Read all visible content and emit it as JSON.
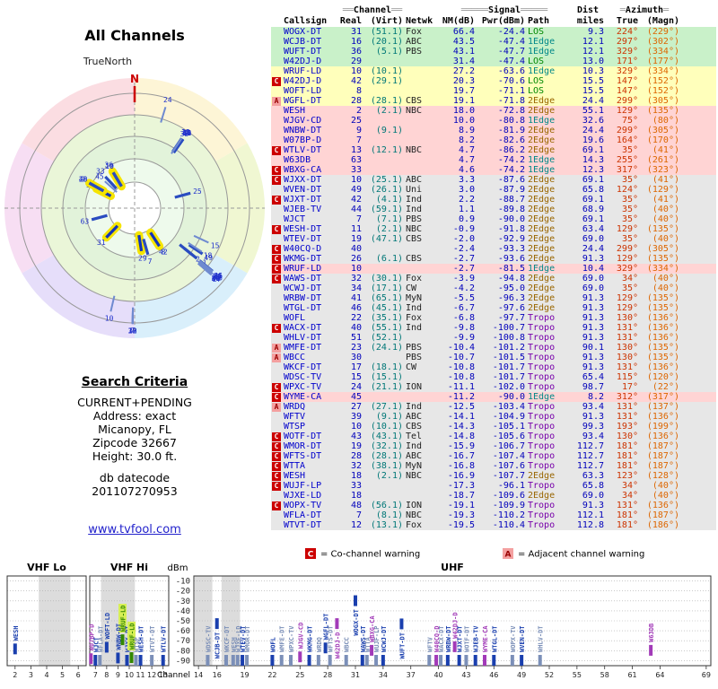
{
  "radar": {
    "title": "All Channels",
    "north_label": "TrueNorth",
    "north_symbol": "N"
  },
  "search": {
    "heading": "Search Criteria",
    "lines": [
      "CURRENT+PENDING",
      "Address: exact",
      "Micanopy, FL",
      "Zipcode 32667",
      "Height: 30.0 ft."
    ],
    "db_label": "db datecode",
    "db_value": "201107270953"
  },
  "link": {
    "text": "www.tvfool.com"
  },
  "table": {
    "group_headers": [
      {
        "pre": "",
        "label": "",
        "post": "",
        "span": 2
      },
      {
        "pre": "══",
        "label": "Channel",
        "post": "══",
        "span": 2
      },
      {
        "pre": "",
        "label": "",
        "post": "",
        "span": 1
      },
      {
        "pre": "═════",
        "label": "Signal",
        "post": "═════",
        "span": 3
      },
      {
        "pre": "",
        "label": "Dist",
        "post": "",
        "span": 1
      },
      {
        "pre": "═",
        "label": "Azimuth",
        "post": "═",
        "span": 2
      }
    ],
    "columns": [
      "",
      "Callsign",
      "Real",
      "(Virt)",
      "Netwk",
      "NM(dB)",
      "Pwr(dBm)",
      "Path",
      "miles",
      "True",
      "(Magn)"
    ],
    "row_fields": [
      "warning",
      "callsign",
      "real",
      "virt",
      "netwk",
      "nm_db",
      "pwr_dbm",
      "path",
      "dist_miles",
      "azimuth_true",
      "azimuth_magn",
      "strength_band"
    ],
    "rows": [
      [
        "",
        "WOGX-DT",
        "31",
        "(51.1)",
        "Fox",
        "66.4",
        "-24.4",
        "LOS",
        "9.3",
        "224°",
        "(229°)",
        "g"
      ],
      [
        "",
        "WCJB-DT",
        "16",
        "(20.1)",
        "ABC",
        "43.5",
        "-47.4",
        "1Edge",
        "12.1",
        "297°",
        "(302°)",
        "g"
      ],
      [
        "",
        "WUFT-DT",
        "36",
        "(5.1)",
        "PBS",
        "43.1",
        "-47.7",
        "1Edge",
        "12.1",
        "329°",
        "(334°)",
        "g"
      ],
      [
        "",
        "W42DJ-D",
        "29",
        "",
        "",
        "31.4",
        "-47.4",
        "LOS",
        "13.0",
        "171°",
        "(177°)",
        "g"
      ],
      [
        "",
        "WRUF-LD",
        "10",
        "(10.1)",
        "",
        "27.2",
        "-63.6",
        "1Edge",
        "10.3",
        "329°",
        "(334°)",
        "y"
      ],
      [
        "C",
        "W42DJ-D",
        "42",
        "(29.1)",
        "",
        "20.3",
        "-70.6",
        "LOS",
        "15.5",
        "147°",
        "(152°)",
        "y"
      ],
      [
        "",
        "WOFT-LD",
        "8",
        "",
        "",
        "19.7",
        "-71.1",
        "LOS",
        "15.5",
        "147°",
        "(152°)",
        "y"
      ],
      [
        "A",
        "WGFL-DT",
        "28",
        "(28.1)",
        "CBS",
        "19.1",
        "-71.8",
        "2Edge",
        "24.4",
        "299°",
        "(305°)",
        "y"
      ],
      [
        "",
        "WESH",
        "2",
        "(2.1)",
        "NBC",
        "18.0",
        "-72.8",
        "2Edge",
        "55.1",
        "129°",
        "(135°)",
        "p"
      ],
      [
        "",
        "WJGV-CD",
        "25",
        "",
        "",
        "10.0",
        "-80.8",
        "1Edge",
        "32.6",
        "75°",
        "(80°)",
        "p"
      ],
      [
        "",
        "WNBW-DT",
        "9",
        "(9.1)",
        "",
        "8.9",
        "-81.9",
        "2Edge",
        "24.4",
        "299°",
        "(305°)",
        "p"
      ],
      [
        "",
        "W07BP-D",
        "7",
        "",
        "",
        "8.2",
        "-82.6",
        "2Edge",
        "19.6",
        "164°",
        "(170°)",
        "p"
      ],
      [
        "C",
        "WTLV-DT",
        "13",
        "(12.1)",
        "NBC",
        "4.7",
        "-86.2",
        "2Edge",
        "69.1",
        "35°",
        "(41°)",
        "p"
      ],
      [
        "",
        "W63DB",
        "63",
        "",
        "",
        "4.7",
        "-74.2",
        "1Edge",
        "14.3",
        "255°",
        "(261°)",
        "p"
      ],
      [
        "C",
        "WBXG-CA",
        "33",
        "",
        "",
        "4.6",
        "-74.2",
        "1Edge",
        "12.3",
        "317°",
        "(323°)",
        "p"
      ],
      [
        "C",
        "WJXX-DT",
        "10",
        "(25.1)",
        "ABC",
        "3.3",
        "-87.6",
        "2Edge",
        "69.1",
        "35°",
        "(41°)",
        "n"
      ],
      [
        "",
        "WVEN-DT",
        "49",
        "(26.1)",
        "Uni",
        "3.0",
        "-87.9",
        "2Edge",
        "65.8",
        "124°",
        "(129°)",
        "n"
      ],
      [
        "C",
        "WJXT-DT",
        "42",
        "(4.1)",
        "Ind",
        "2.2",
        "-88.7",
        "2Edge",
        "69.1",
        "35°",
        "(41°)",
        "n"
      ],
      [
        "",
        "WJEB-TV",
        "44",
        "(59.1)",
        "Ind",
        "1.1",
        "-89.8",
        "2Edge",
        "68.9",
        "35°",
        "(40°)",
        "n"
      ],
      [
        "",
        "WJCT",
        "7",
        "(7.1)",
        "PBS",
        "0.9",
        "-90.0",
        "2Edge",
        "69.1",
        "35°",
        "(40°)",
        "n"
      ],
      [
        "C",
        "WESH-DT",
        "11",
        "(2.1)",
        "NBC",
        "-0.9",
        "-91.8",
        "2Edge",
        "63.4",
        "129°",
        "(135°)",
        "n"
      ],
      [
        "",
        "WTEV-DT",
        "19",
        "(47.1)",
        "CBS",
        "-2.0",
        "-92.9",
        "2Edge",
        "69.0",
        "35°",
        "(40°)",
        "n"
      ],
      [
        "C",
        "W40CQ-D",
        "40",
        "",
        "",
        "-2.4",
        "-93.3",
        "2Edge",
        "24.4",
        "299°",
        "(305°)",
        "n"
      ],
      [
        "C",
        "WKMG-DT",
        "26",
        "(6.1)",
        "CBS",
        "-2.7",
        "-93.6",
        "2Edge",
        "91.3",
        "129°",
        "(135°)",
        "n"
      ],
      [
        "C",
        "WRUF-LD",
        "10",
        "",
        "",
        "-2.7",
        "-81.5",
        "1Edge",
        "10.4",
        "329°",
        "(334°)",
        "p"
      ],
      [
        "C",
        "WAWS-DT",
        "32",
        "(30.1)",
        "Fox",
        "-3.9",
        "-94.8",
        "2Edge",
        "69.0",
        "34°",
        "(40°)",
        "n"
      ],
      [
        "",
        "WCWJ-DT",
        "34",
        "(17.1)",
        "CW",
        "-4.2",
        "-95.0",
        "2Edge",
        "69.0",
        "35°",
        "(40°)",
        "n"
      ],
      [
        "",
        "WRBW-DT",
        "41",
        "(65.1)",
        "MyN",
        "-5.5",
        "-96.3",
        "2Edge",
        "91.3",
        "129°",
        "(135°)",
        "n"
      ],
      [
        "",
        "WTGL-DT",
        "46",
        "(45.1)",
        "Ind",
        "-6.7",
        "-97.6",
        "2Edge",
        "91.3",
        "129°",
        "(135°)",
        "n"
      ],
      [
        "",
        "WOFL",
        "22",
        "(35.1)",
        "Fox",
        "-6.8",
        "-97.7",
        "Tropo",
        "91.3",
        "130°",
        "(136°)",
        "n"
      ],
      [
        "C",
        "WACX-DT",
        "40",
        "(55.1)",
        "Ind",
        "-9.8",
        "-100.7",
        "Tropo",
        "91.3",
        "131°",
        "(136°)",
        "n"
      ],
      [
        "",
        "WHLV-DT",
        "51",
        "(52.1)",
        "",
        "-9.9",
        "-100.8",
        "Tropo",
        "91.3",
        "131°",
        "(136°)",
        "n"
      ],
      [
        "A",
        "WMFE-DT",
        "23",
        "(24.1)",
        "PBS",
        "-10.4",
        "-101.2",
        "Tropo",
        "90.1",
        "130°",
        "(135°)",
        "n"
      ],
      [
        "A",
        "WBCC",
        "30",
        "",
        "PBS",
        "-10.7",
        "-101.5",
        "Tropo",
        "91.3",
        "130°",
        "(135°)",
        "n"
      ],
      [
        "",
        "WKCF-DT",
        "17",
        "(18.1)",
        "CW",
        "-10.8",
        "-101.7",
        "Tropo",
        "91.3",
        "131°",
        "(136°)",
        "n"
      ],
      [
        "",
        "WDSC-TV",
        "15",
        "(15.1)",
        "",
        "-10.8",
        "-101.7",
        "Tropo",
        "65.4",
        "115°",
        "(120°)",
        "n"
      ],
      [
        "C",
        "WPXC-TV",
        "24",
        "(21.1)",
        "ION",
        "-11.1",
        "-102.0",
        "Tropo",
        "98.7",
        "17°",
        "(22°)",
        "n"
      ],
      [
        "C",
        "WYME-CA",
        "45",
        "",
        "",
        "-11.2",
        "-90.0",
        "1Edge",
        "8.2",
        "312°",
        "(317°)",
        "p"
      ],
      [
        "A",
        "WRDQ",
        "27",
        "(27.1)",
        "Ind",
        "-12.5",
        "-103.4",
        "Tropo",
        "93.4",
        "131°",
        "(137°)",
        "n"
      ],
      [
        "",
        "WFTV",
        "39",
        "(9.1)",
        "ABC",
        "-14.1",
        "-104.9",
        "Tropo",
        "91.3",
        "131°",
        "(136°)",
        "n"
      ],
      [
        "",
        "WTSP",
        "10",
        "(10.1)",
        "CBS",
        "-14.3",
        "-105.1",
        "Tropo",
        "99.3",
        "193°",
        "(199°)",
        "n"
      ],
      [
        "C",
        "WOTF-DT",
        "43",
        "(43.1)",
        "Tel",
        "-14.8",
        "-105.6",
        "Tropo",
        "93.4",
        "130°",
        "(136°)",
        "n"
      ],
      [
        "C",
        "WMOR-DT",
        "19",
        "(32.1)",
        "Ind",
        "-15.9",
        "-106.7",
        "Tropo",
        "112.7",
        "181°",
        "(187°)",
        "n"
      ],
      [
        "C",
        "WFTS-DT",
        "28",
        "(28.1)",
        "ABC",
        "-16.7",
        "-107.4",
        "Tropo",
        "112.7",
        "181°",
        "(187°)",
        "n"
      ],
      [
        "C",
        "WTTA",
        "32",
        "(38.1)",
        "MyN",
        "-16.8",
        "-107.6",
        "Tropo",
        "112.7",
        "181°",
        "(187°)",
        "n"
      ],
      [
        "C",
        "WESH",
        "18",
        "(2.1)",
        "NBC",
        "-16.9",
        "-107.7",
        "2Edge",
        "63.3",
        "123°",
        "(128°)",
        "n"
      ],
      [
        "C",
        "WUJF-LP",
        "33",
        "",
        "",
        "-17.3",
        "-96.1",
        "Tropo",
        "65.8",
        "34°",
        "(40°)",
        "n"
      ],
      [
        "",
        "WJXE-LD",
        "18",
        "",
        "",
        "-18.7",
        "-109.6",
        "2Edge",
        "69.0",
        "34°",
        "(40°)",
        "n"
      ],
      [
        "C",
        "WOPX-TV",
        "48",
        "(56.1)",
        "ION",
        "-19.1",
        "-109.9",
        "Tropo",
        "91.3",
        "131°",
        "(136°)",
        "n"
      ],
      [
        "",
        "WFLA-DT",
        "7",
        "(8.1)",
        "NBC",
        "-19.3",
        "-110.2",
        "Tropo",
        "112.1",
        "181°",
        "(187°)",
        "n"
      ],
      [
        "",
        "WTVT-DT",
        "12",
        "(13.1)",
        "Fox",
        "-19.5",
        "-110.4",
        "Tropo",
        "112.8",
        "181°",
        "(186°)",
        "n"
      ]
    ]
  },
  "spectrum": {
    "legend": {
      "c_symbol": "C",
      "c_text": "= Co-channel warning",
      "a_symbol": "A",
      "a_text": "= Adjacent channel warning"
    },
    "axis": {
      "unit": "dBm",
      "channel_label": "Channel",
      "dbm_ticks": [
        -10,
        -20,
        -30,
        -40,
        -50,
        -60,
        -70,
        -80,
        -90
      ]
    },
    "panels": [
      {
        "label": "VHF Lo",
        "ch_min": 2,
        "ch_max": 6,
        "ticks": [
          2,
          3,
          4,
          5,
          6
        ],
        "stripes": [
          [
            3.5,
            5.5
          ]
        ]
      },
      {
        "label": "VHF Hi",
        "ch_min": 7,
        "ch_max": 13,
        "ticks": [
          7,
          8,
          9,
          10,
          11,
          12,
          13
        ],
        "stripes": [
          [
            7.5,
            10.5
          ]
        ]
      },
      {
        "label": "UHF",
        "ch_min": 14,
        "ch_max": 69,
        "ticks": [
          14,
          16,
          19,
          22,
          25,
          28,
          31,
          34,
          37,
          40,
          43,
          46,
          49,
          52,
          55,
          58,
          61,
          64,
          69
        ],
        "stripes": [
          [
            13.6,
            15.5
          ],
          [
            16.5,
            18.5
          ]
        ]
      }
    ]
  },
  "colors": {
    "band_green": "#c9f1c9",
    "band_yellow": "#ffffbb",
    "band_pink": "#ffd4d4",
    "band_gray": "#e7e7e7",
    "warn_c": "#cc0000",
    "warn_a": "#f4a0a0",
    "callsign": "#0000cc",
    "number": "#0000bb",
    "virt": "#007777",
    "path_LOS": "#008800",
    "path_1Edge": "#008888",
    "path_2Edge": "#996600",
    "path_Tropo": "#7700aa",
    "azimuth_true": "#cc3300",
    "azimuth_magn": "#dd6600",
    "bar_normal": "#1a3fae",
    "bar_lptv": "#a23ab8",
    "bar_weak": "#7b8fb8",
    "bar_wruf": "#338800",
    "highlight": "#d7ef55",
    "north": "#cc0000"
  }
}
